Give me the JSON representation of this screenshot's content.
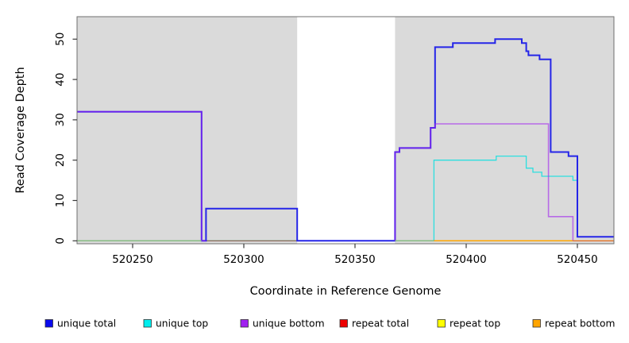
{
  "chart_data": {
    "type": "line",
    "subtype": "step-coverage-plot",
    "title": "",
    "xlabel": "Coordinate in Reference Genome",
    "ylabel": "Read Coverage Depth",
    "x_ticks": [
      520250,
      520300,
      520350,
      520400,
      520450
    ],
    "x_tick_labels": [
      "520250",
      "520300",
      "520350",
      "520400",
      "520450"
    ],
    "y_ticks": [
      0,
      10,
      20,
      30,
      40,
      50
    ],
    "y_tick_labels": [
      "0",
      "10",
      "20",
      "30",
      "40",
      "50"
    ],
    "xlim": [
      520225,
      520466.3
    ],
    "ylim": [
      -0.7,
      55.6
    ],
    "grid": false,
    "legend_position": "bottom",
    "background": {
      "masked_color": "#dadada",
      "masked_regions": [
        [
          520225,
          520324
        ],
        [
          520368,
          520466.3
        ]
      ],
      "unmasked_gap": [
        520324,
        520368
      ],
      "box_color": "#6f6f6f",
      "tick_color": "#3a3a3a"
    },
    "series": [
      {
        "name": "unique-total",
        "label": "unique total",
        "swatch_color": "#0a0aee",
        "line_color": "#2525e8",
        "line_width": 2,
        "line_opacity": 1,
        "draw_index": 4,
        "steps": [
          [
            [
              520225,
              32
            ],
            [
              520281,
              0
            ],
            [
              520283,
              8
            ],
            [
              520324,
              0
            ],
            [
              520368,
              22
            ],
            [
              520370,
              23
            ],
            [
              520384,
              28
            ],
            [
              520386,
              48
            ],
            [
              520394,
              49
            ],
            [
              520413,
              50
            ],
            [
              520425,
              49
            ],
            [
              520427,
              47
            ],
            [
              520428,
              46
            ],
            [
              520433,
              45
            ],
            [
              520438,
              22
            ],
            [
              520446,
              21
            ],
            [
              520450,
              1
            ],
            [
              520466.3,
              1
            ]
          ]
        ]
      },
      {
        "name": "unique-top",
        "label": "unique top",
        "swatch_color": "#00eeee",
        "line_color": "#00e0e0",
        "line_width": 1.3,
        "line_opacity": 0.8,
        "draw_index": 2,
        "steps": [
          [
            [
              520225,
              0
            ],
            [
              520385.5,
              20
            ],
            [
              520413.5,
              21
            ],
            [
              520427,
              18
            ],
            [
              520430,
              17
            ],
            [
              520434,
              16
            ],
            [
              520448,
              15
            ],
            [
              520450,
              1
            ],
            [
              520466.3,
              1
            ]
          ]
        ]
      },
      {
        "name": "unique-bottom",
        "label": "unique bottom",
        "swatch_color": "#a020f0",
        "line_color": "#a020f0",
        "line_width": 1.6,
        "line_opacity": 0.6,
        "draw_index": 5,
        "steps": [
          [
            [
              520225,
              32
            ],
            [
              520281,
              0
            ],
            [
              520283,
              0
            ]
          ],
          [
            [
              520368,
              0
            ],
            [
              520368,
              22
            ],
            [
              520370,
              23
            ],
            [
              520384,
              28
            ],
            [
              520386,
              29
            ],
            [
              520437,
              6
            ],
            [
              520448,
              0
            ]
          ]
        ]
      },
      {
        "name": "repeat-total",
        "label": "repeat total",
        "swatch_color": "#ee0000",
        "line_color": "#e00000",
        "line_width": 1.2,
        "line_opacity": 0.62,
        "draw_index": 3,
        "steps": [
          [
            [
              520225,
              0
            ],
            [
              520466.3,
              0
            ]
          ]
        ]
      },
      {
        "name": "repeat-top",
        "label": "repeat top",
        "swatch_color": "#ffff00",
        "line_color": "#f0f000",
        "line_width": 1,
        "line_opacity": 0.9,
        "draw_index": 1,
        "steps": [
          [
            [
              520225,
              0
            ],
            [
              520466.3,
              0
            ]
          ]
        ]
      },
      {
        "name": "repeat-bottom",
        "label": "repeat bottom",
        "swatch_color": "#ffa500",
        "line_color": "#ffa500",
        "line_width": 1.5,
        "line_opacity": 1,
        "draw_index": 6,
        "steps": [
          [
            [
              520385.5,
              0
            ],
            [
              520448,
              0
            ]
          ]
        ]
      }
    ],
    "baseline_blends": [
      {
        "name": "cyan-yellow-blend-green",
        "color": "#85c785",
        "width": 1.4,
        "opacity": 0.9,
        "y": 0,
        "segments": [
          [
            520225,
            520281
          ],
          [
            520368,
            520385.5
          ]
        ]
      }
    ]
  }
}
